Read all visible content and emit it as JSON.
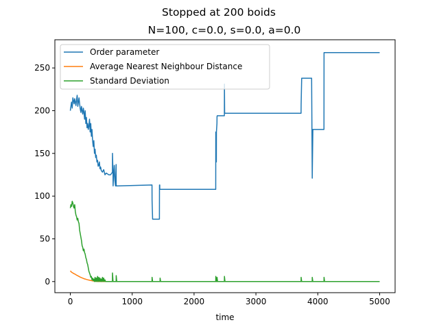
{
  "chart_data": {
    "type": "line",
    "title": "Stopped at 200 boids",
    "subtitle": "N=100, c=0.0, s=0.0, a=0.0",
    "xlabel": "time",
    "ylabel": "",
    "xlim": [
      -250,
      5250
    ],
    "ylim": [
      -13,
      283
    ],
    "xticks": [
      0,
      1000,
      2000,
      3000,
      4000,
      5000
    ],
    "yticks": [
      0,
      50,
      100,
      150,
      200,
      250
    ],
    "grid": false,
    "legend_position": "top-left",
    "series": [
      {
        "name": "Order parameter",
        "color": "#1f77b4",
        "x": [
          0,
          10,
          20,
          30,
          40,
          50,
          60,
          70,
          80,
          90,
          100,
          110,
          120,
          130,
          140,
          150,
          160,
          170,
          180,
          190,
          200,
          210,
          220,
          230,
          240,
          250,
          260,
          270,
          280,
          290,
          300,
          310,
          320,
          330,
          340,
          350,
          360,
          370,
          380,
          390,
          400,
          410,
          420,
          430,
          440,
          450,
          460,
          470,
          480,
          490,
          500,
          520,
          540,
          560,
          580,
          600,
          620,
          650,
          680,
          681,
          690,
          691,
          700,
          710,
          720,
          730,
          740,
          741,
          750,
          751,
          760,
          1320,
          1321,
          1330,
          1331,
          1440,
          1441,
          1445,
          1446,
          1450,
          1451,
          1460,
          1461,
          2350,
          2351,
          2360,
          2361,
          2370,
          2371,
          2375,
          2376,
          2380,
          2381,
          2490,
          2491,
          2495,
          2496,
          2500,
          2501,
          2505,
          2506,
          3730,
          3731,
          3740,
          3741,
          3900,
          3901,
          3910,
          3911,
          3920,
          3921,
          3925,
          3926,
          4100,
          4101,
          4110,
          4111,
          5000
        ],
        "y": [
          200,
          205,
          210,
          203,
          215,
          212,
          208,
          214,
          210,
          206,
          213,
          218,
          205,
          210,
          215,
          208,
          202,
          198,
          205,
          200,
          196,
          203,
          198,
          190,
          200,
          185,
          192,
          180,
          185,
          178,
          182,
          190,
          175,
          185,
          170,
          178,
          165,
          158,
          165,
          150,
          155,
          145,
          148,
          140,
          142,
          135,
          136,
          140,
          132,
          134,
          130,
          128,
          131,
          125,
          127,
          126,
          125,
          125,
          128,
          150,
          125,
          112,
          125,
          136,
          118,
          112,
          137,
          112,
          112,
          112,
          112,
          113,
          95,
          73,
          73,
          73,
          113,
          113,
          108,
          108,
          108,
          108,
          108,
          108,
          175,
          140,
          175,
          185,
          193,
          194,
          194,
          194,
          194,
          194,
          231,
          197,
          197,
          197,
          197,
          197,
          197,
          197,
          207,
          238,
          238,
          238,
          238,
          121,
          121,
          178,
          178,
          178,
          178,
          178,
          268,
          268,
          268,
          268
        ]
      },
      {
        "name": "Average Nearest Neighbour Distance",
        "color": "#ff7f0e",
        "x": [
          0,
          20,
          40,
          60,
          80,
          100,
          120,
          140,
          160,
          180,
          200,
          220,
          240,
          260,
          280,
          300,
          320,
          340,
          360,
          380,
          400,
          420,
          440,
          460,
          480,
          500,
          5000
        ],
        "y": [
          12.5,
          11,
          10,
          9.2,
          8.5,
          7.5,
          6.8,
          6,
          5.2,
          4.6,
          4,
          3.4,
          3,
          2.5,
          2.1,
          1.8,
          1.4,
          1.1,
          0.9,
          0.6,
          0.4,
          0.25,
          0.15,
          0.1,
          0.05,
          0,
          0
        ]
      },
      {
        "name": "Standard Deviation",
        "color": "#2ca02c",
        "x": [
          0,
          10,
          20,
          30,
          40,
          50,
          60,
          70,
          80,
          90,
          100,
          110,
          120,
          130,
          140,
          150,
          160,
          170,
          180,
          190,
          200,
          210,
          220,
          230,
          240,
          250,
          260,
          270,
          280,
          290,
          300,
          310,
          320,
          330,
          340,
          350,
          360,
          370,
          380,
          390,
          400,
          410,
          420,
          430,
          440,
          450,
          460,
          470,
          480,
          490,
          500,
          510,
          520,
          530,
          540,
          550,
          560,
          570,
          580,
          600,
          680,
          681,
          690,
          691,
          740,
          741,
          750,
          751,
          1320,
          1321,
          1330,
          1331,
          1450,
          1451,
          1460,
          1461,
          2350,
          2351,
          2360,
          2361,
          2370,
          2371,
          2380,
          2381,
          2490,
          2491,
          2500,
          2501,
          3730,
          3731,
          3740,
          3741,
          3910,
          3911,
          3920,
          3921,
          4100,
          4101,
          4110,
          4111,
          5000
        ],
        "y": [
          86,
          90,
          88,
          94,
          92,
          88,
          86,
          90,
          82,
          78,
          76,
          72,
          74,
          70,
          68,
          60,
          56,
          52,
          48,
          42,
          40,
          36,
          38,
          34,
          32,
          28,
          26,
          22,
          20,
          16,
          12,
          10,
          8,
          5,
          6,
          2,
          4,
          1,
          3,
          0,
          5,
          0,
          4,
          0,
          6,
          0,
          5,
          0,
          4,
          0,
          3,
          0,
          5,
          0,
          4,
          0,
          2,
          0,
          0,
          0,
          0,
          10,
          0,
          0,
          0,
          7,
          0,
          0,
          0,
          5,
          0,
          0,
          0,
          4,
          0,
          0,
          0,
          6,
          0,
          0,
          0,
          5,
          0,
          0,
          0,
          6,
          0,
          0,
          0,
          5,
          0,
          0,
          0,
          5,
          0,
          0,
          0,
          5,
          0,
          0,
          0
        ]
      }
    ]
  }
}
